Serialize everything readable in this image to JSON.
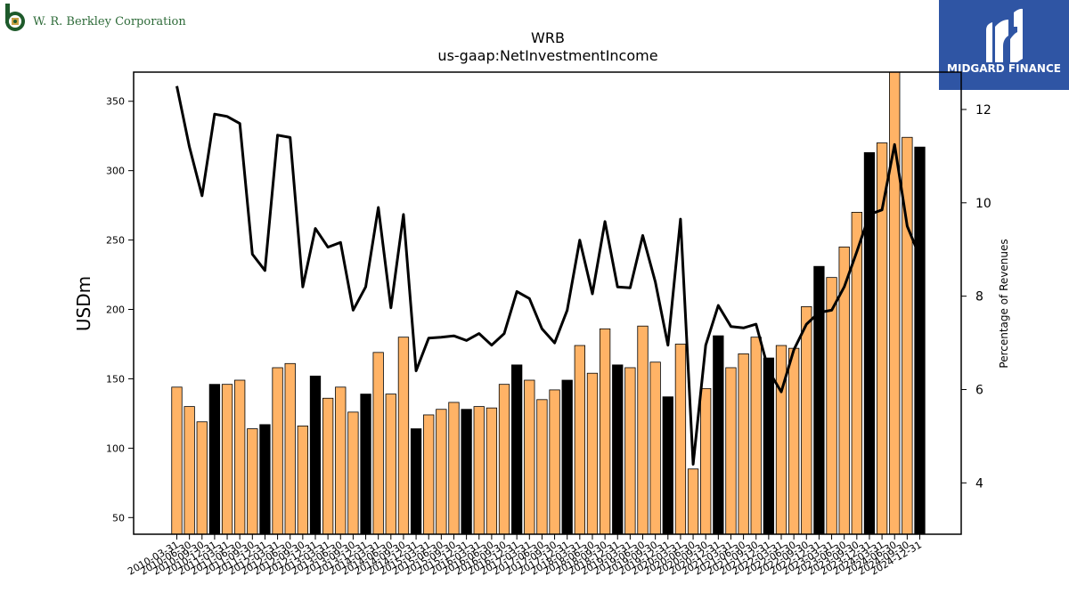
{
  "branding": {
    "company_name": "W. R. Berkley Corporation",
    "company_icon": "berkley-b-seal-logo",
    "company_color": "#1e5a2b",
    "publisher_name": "MIDGARD FINANCE",
    "publisher_icon": "midgard-m-logo",
    "publisher_bg": "#2f55a4"
  },
  "chart_data": {
    "type": "bar",
    "title": "WRB",
    "subtitle": "us-gaap:NetInvestmentIncome",
    "ylabel": "USDm",
    "y2label": "Percentage of Revenues",
    "ylim": [
      38,
      371
    ],
    "y2lim": [
      2.9,
      12.8
    ],
    "yticks": [
      50,
      100,
      150,
      200,
      250,
      300,
      350
    ],
    "y2ticks": [
      4,
      6,
      8,
      10,
      12
    ],
    "colors": {
      "quarter_bar": "#ffb366",
      "year_end_bar": "#000000",
      "line": "#000000"
    },
    "categories": [
      "2010-03-31",
      "2010-06-30",
      "2010-09-30",
      "2010-12-31",
      "2011-03-31",
      "2011-06-30",
      "2011-09-30",
      "2011-12-31",
      "2012-03-31",
      "2012-06-30",
      "2012-09-30",
      "2012-12-31",
      "2013-03-31",
      "2013-06-30",
      "2013-09-30",
      "2013-12-31",
      "2014-03-31",
      "2014-06-30",
      "2014-09-30",
      "2014-12-31",
      "2015-03-31",
      "2015-06-30",
      "2015-09-30",
      "2015-12-31",
      "2016-03-31",
      "2016-06-30",
      "2016-09-30",
      "2016-12-31",
      "2017-03-31",
      "2017-06-30",
      "2017-09-30",
      "2017-12-31",
      "2018-03-31",
      "2018-06-30",
      "2018-09-30",
      "2018-12-31",
      "2019-03-31",
      "2019-06-30",
      "2019-09-30",
      "2019-12-31",
      "2020-03-31",
      "2020-06-30",
      "2020-09-30",
      "2020-12-31",
      "2021-03-31",
      "2021-06-30",
      "2021-09-30",
      "2021-12-31",
      "2022-03-31",
      "2022-06-30",
      "2022-09-30",
      "2022-12-31",
      "2023-03-31",
      "2023-06-30",
      "2023-09-30",
      "2023-12-31",
      "2024-03-31",
      "2024-06-30",
      "2024-09-30",
      "2024-12-31"
    ],
    "series": [
      {
        "kind": "bar",
        "values": [
          144,
          130,
          119,
          146,
          146,
          149,
          114,
          117,
          158,
          161,
          116,
          152,
          136,
          144,
          126,
          139,
          169,
          139,
          180,
          114,
          124,
          128,
          133,
          128,
          130,
          129,
          146,
          160,
          149,
          135,
          142,
          149,
          174,
          154,
          186,
          160,
          158,
          188,
          162,
          137,
          175,
          85,
          143,
          181,
          158,
          168,
          180,
          165,
          174,
          172,
          202,
          231,
          223,
          245,
          270,
          313,
          320,
          372,
          324,
          317
        ]
      },
      {
        "kind": "line",
        "axis": "right",
        "values": [
          12.5,
          11.2,
          10.15,
          11.9,
          11.85,
          11.7,
          8.9,
          8.55,
          11.45,
          11.4,
          8.2,
          9.45,
          9.05,
          9.15,
          7.7,
          8.2,
          9.9,
          7.75,
          9.75,
          6.4,
          7.1,
          7.12,
          7.15,
          7.05,
          7.2,
          6.95,
          7.2,
          8.1,
          7.95,
          7.3,
          7.0,
          7.7,
          9.2,
          8.05,
          9.6,
          8.2,
          8.18,
          9.3,
          8.3,
          6.95,
          9.65,
          4.4,
          6.95,
          7.8,
          7.35,
          7.32,
          7.4,
          6.4,
          5.95,
          6.85,
          7.4,
          7.65,
          7.7,
          8.2,
          8.95,
          9.75,
          9.85,
          11.25,
          9.5,
          8.85
        ]
      }
    ]
  }
}
